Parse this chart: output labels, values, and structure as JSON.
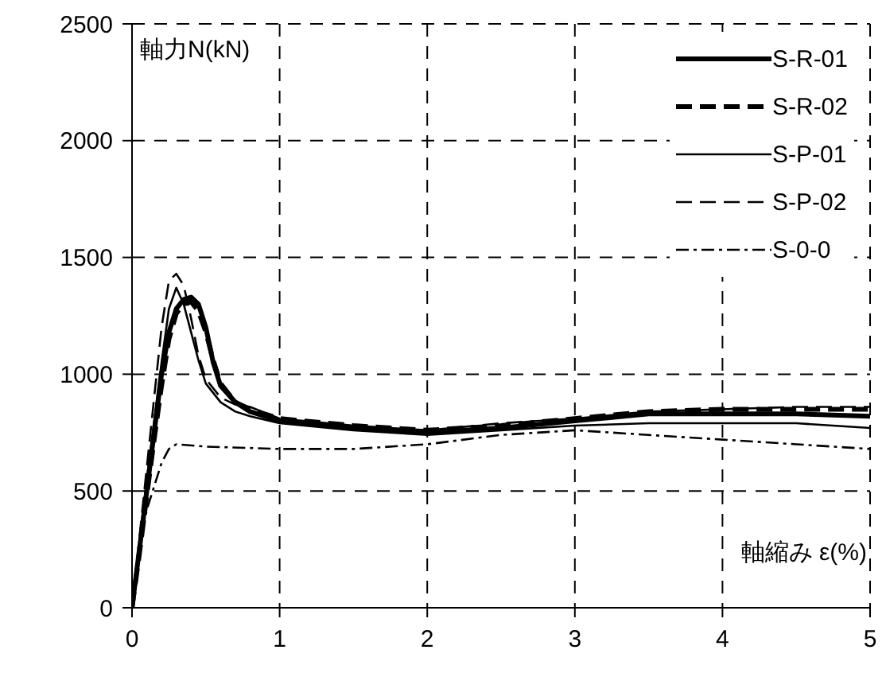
{
  "chart_data": {
    "type": "line",
    "xlabel": "軸縮み ε(%)",
    "ylabel": "軸力N(kN)",
    "xlim": [
      0,
      5
    ],
    "xticks": [
      0,
      1,
      2,
      3,
      4,
      5
    ],
    "ylim": [
      0,
      2500
    ],
    "yticks": [
      0,
      500,
      1000,
      1500,
      2000,
      2500
    ],
    "grid": true,
    "legend": "top right",
    "marker": "none",
    "series": [
      {
        "name": "S-R-01",
        "color": "#000000",
        "line_style": "solid",
        "x": [
          0,
          0.05,
          0.1,
          0.15,
          0.2,
          0.25,
          0.3,
          0.35,
          0.4,
          0.45,
          0.5,
          0.55,
          0.6,
          0.7,
          0.8,
          1,
          1.5,
          2,
          2.5,
          3,
          3.5,
          4,
          4.5,
          5
        ],
        "values": [
          0,
          250,
          500,
          750,
          1000,
          1180,
          1280,
          1320,
          1330,
          1300,
          1200,
          1050,
          950,
          880,
          840,
          800,
          770,
          750,
          770,
          800,
          830,
          830,
          830,
          820
        ]
      },
      {
        "name": "S-R-02",
        "color": "#000000",
        "line_style": "dashed",
        "x": [
          0,
          0.05,
          0.1,
          0.15,
          0.2,
          0.25,
          0.3,
          0.35,
          0.4,
          0.45,
          0.5,
          0.55,
          0.6,
          0.7,
          0.8,
          1,
          1.5,
          2,
          2.5,
          3,
          3.5,
          4,
          4.5,
          5
        ],
        "values": [
          0,
          230,
          480,
          720,
          950,
          1150,
          1260,
          1300,
          1310,
          1270,
          1180,
          1060,
          960,
          880,
          850,
          810,
          780,
          760,
          780,
          810,
          840,
          850,
          850,
          850
        ]
      },
      {
        "name": "S-P-01",
        "color": "#000000",
        "line_style": "solid",
        "x": [
          0,
          0.05,
          0.1,
          0.15,
          0.2,
          0.25,
          0.3,
          0.35,
          0.4,
          0.45,
          0.5,
          0.6,
          0.7,
          0.8,
          1,
          1.5,
          2,
          2.5,
          3,
          3.5,
          4,
          4.5,
          5
        ],
        "values": [
          0,
          280,
          550,
          800,
          1050,
          1280,
          1370,
          1300,
          1180,
          1060,
          960,
          880,
          840,
          820,
          790,
          760,
          740,
          760,
          780,
          790,
          790,
          790,
          770
        ]
      },
      {
        "name": "S-P-02",
        "color": "#000000",
        "line_style": "dashed",
        "x": [
          0,
          0.05,
          0.1,
          0.15,
          0.2,
          0.25,
          0.3,
          0.35,
          0.4,
          0.45,
          0.5,
          0.6,
          0.7,
          0.8,
          1,
          1.5,
          2,
          2.5,
          3,
          3.5,
          4,
          4.5,
          5
        ],
        "values": [
          0,
          300,
          600,
          900,
          1200,
          1400,
          1430,
          1380,
          1240,
          1080,
          980,
          900,
          870,
          860,
          810,
          780,
          760,
          790,
          810,
          840,
          850,
          860,
          860
        ]
      },
      {
        "name": "S-0-0",
        "color": "#000000",
        "line_style": "dotted",
        "x": [
          0,
          0.05,
          0.1,
          0.15,
          0.2,
          0.25,
          0.3,
          0.5,
          1,
          1.5,
          2,
          2.5,
          3,
          3.5,
          4,
          4.5,
          5
        ],
        "values": [
          0,
          250,
          420,
          520,
          620,
          680,
          700,
          690,
          680,
          680,
          700,
          740,
          760,
          740,
          720,
          700,
          680
        ]
      }
    ]
  }
}
